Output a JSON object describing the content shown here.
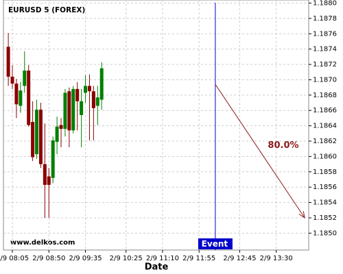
{
  "chart_data": {
    "type": "candlestick",
    "title": "EURUSD 5 (FOREX)",
    "xlabel": "Date",
    "watermark": "www.delkos.com",
    "grid": true,
    "xlim": [
      "2/9 07:54",
      "2/9 14:10"
    ],
    "xticks": [
      "2/9 08:05",
      "2/9 08:50",
      "2/9 09:35",
      "2/9 10:25",
      "2/9 11:10",
      "2/9 11:55",
      "2/9 12:45",
      "2/9 13:30"
    ],
    "ylim": [
      1.18478,
      1.18804
    ],
    "yticks": [
      {
        "value": 1.185,
        "label": "1.1850"
      },
      1.1852,
      1.1854,
      1.1856,
      1.1858,
      {
        "value": 1.186,
        "label": "1.1860"
      },
      1.1862,
      1.1864,
      1.1866,
      1.1868,
      {
        "value": 1.187,
        "label": "1.1870"
      },
      1.1872,
      1.1874,
      1.1876,
      1.1878,
      {
        "value": 1.188,
        "label": "1.1880"
      }
    ],
    "up_color": "#008000",
    "down_color": "#8b0000",
    "series": [
      {
        "x": [
          "2/9 08:00",
          "2/9 08:05",
          "2/9 08:10",
          "2/9 08:15",
          "2/9 08:20",
          "2/9 08:25",
          "2/9 08:30",
          "2/9 08:35",
          "2/9 08:40",
          "2/9 08:45",
          "2/9 08:50",
          "2/9 08:55",
          "2/9 09:00",
          "2/9 09:05",
          "2/9 09:10",
          "2/9 09:15",
          "2/9 09:20",
          "2/9 09:25",
          "2/9 09:30",
          "2/9 09:35",
          "2/9 09:40",
          "2/9 09:45",
          "2/9 09:50",
          "2/9 09:55"
        ],
        "open": [
          1.18743,
          1.18704,
          1.18695,
          1.18666,
          1.18692,
          1.18712,
          1.18645,
          1.18603,
          1.18661,
          1.1859,
          1.18574,
          1.18572,
          1.18619,
          1.18641,
          1.18636,
          1.18685,
          1.18634,
          1.18688,
          1.18654,
          1.18683,
          1.18692,
          1.18685,
          1.18666,
          1.18674
        ],
        "high": [
          1.18761,
          1.18719,
          1.18701,
          1.18697,
          1.18737,
          1.18719,
          1.18672,
          1.18674,
          1.1867,
          1.18643,
          1.18585,
          1.18626,
          1.18652,
          1.1865,
          1.18688,
          1.1869,
          1.18692,
          1.18697,
          1.18688,
          1.18706,
          1.18707,
          1.18692,
          1.18692,
          1.18723
        ],
        "low": [
          1.18692,
          1.18688,
          1.1865,
          1.18657,
          1.18683,
          1.18639,
          1.18594,
          1.18597,
          1.18585,
          1.1852,
          1.1852,
          1.18565,
          1.18603,
          1.18612,
          1.18626,
          1.18612,
          1.1863,
          1.18634,
          1.18612,
          1.1867,
          1.18621,
          1.18621,
          1.18641,
          1.18661
        ],
        "close": [
          1.18704,
          1.18695,
          1.18668,
          1.18686,
          1.18712,
          1.18641,
          1.18599,
          1.18661,
          1.1859,
          1.18563,
          1.18563,
          1.18621,
          1.18639,
          1.18636,
          1.18683,
          1.18634,
          1.18688,
          1.18672,
          1.18672,
          1.18692,
          1.18685,
          1.18663,
          1.18677,
          1.18715
        ]
      }
    ],
    "event": {
      "label": "Event",
      "x": "2/9 12:15",
      "color": "#0000cc"
    },
    "projection": {
      "label": "80.0%",
      "x": [
        "2/9 12:15",
        "2/9 14:05"
      ],
      "y": [
        1.18694,
        1.1852
      ],
      "color": "#8b1a1a"
    }
  }
}
